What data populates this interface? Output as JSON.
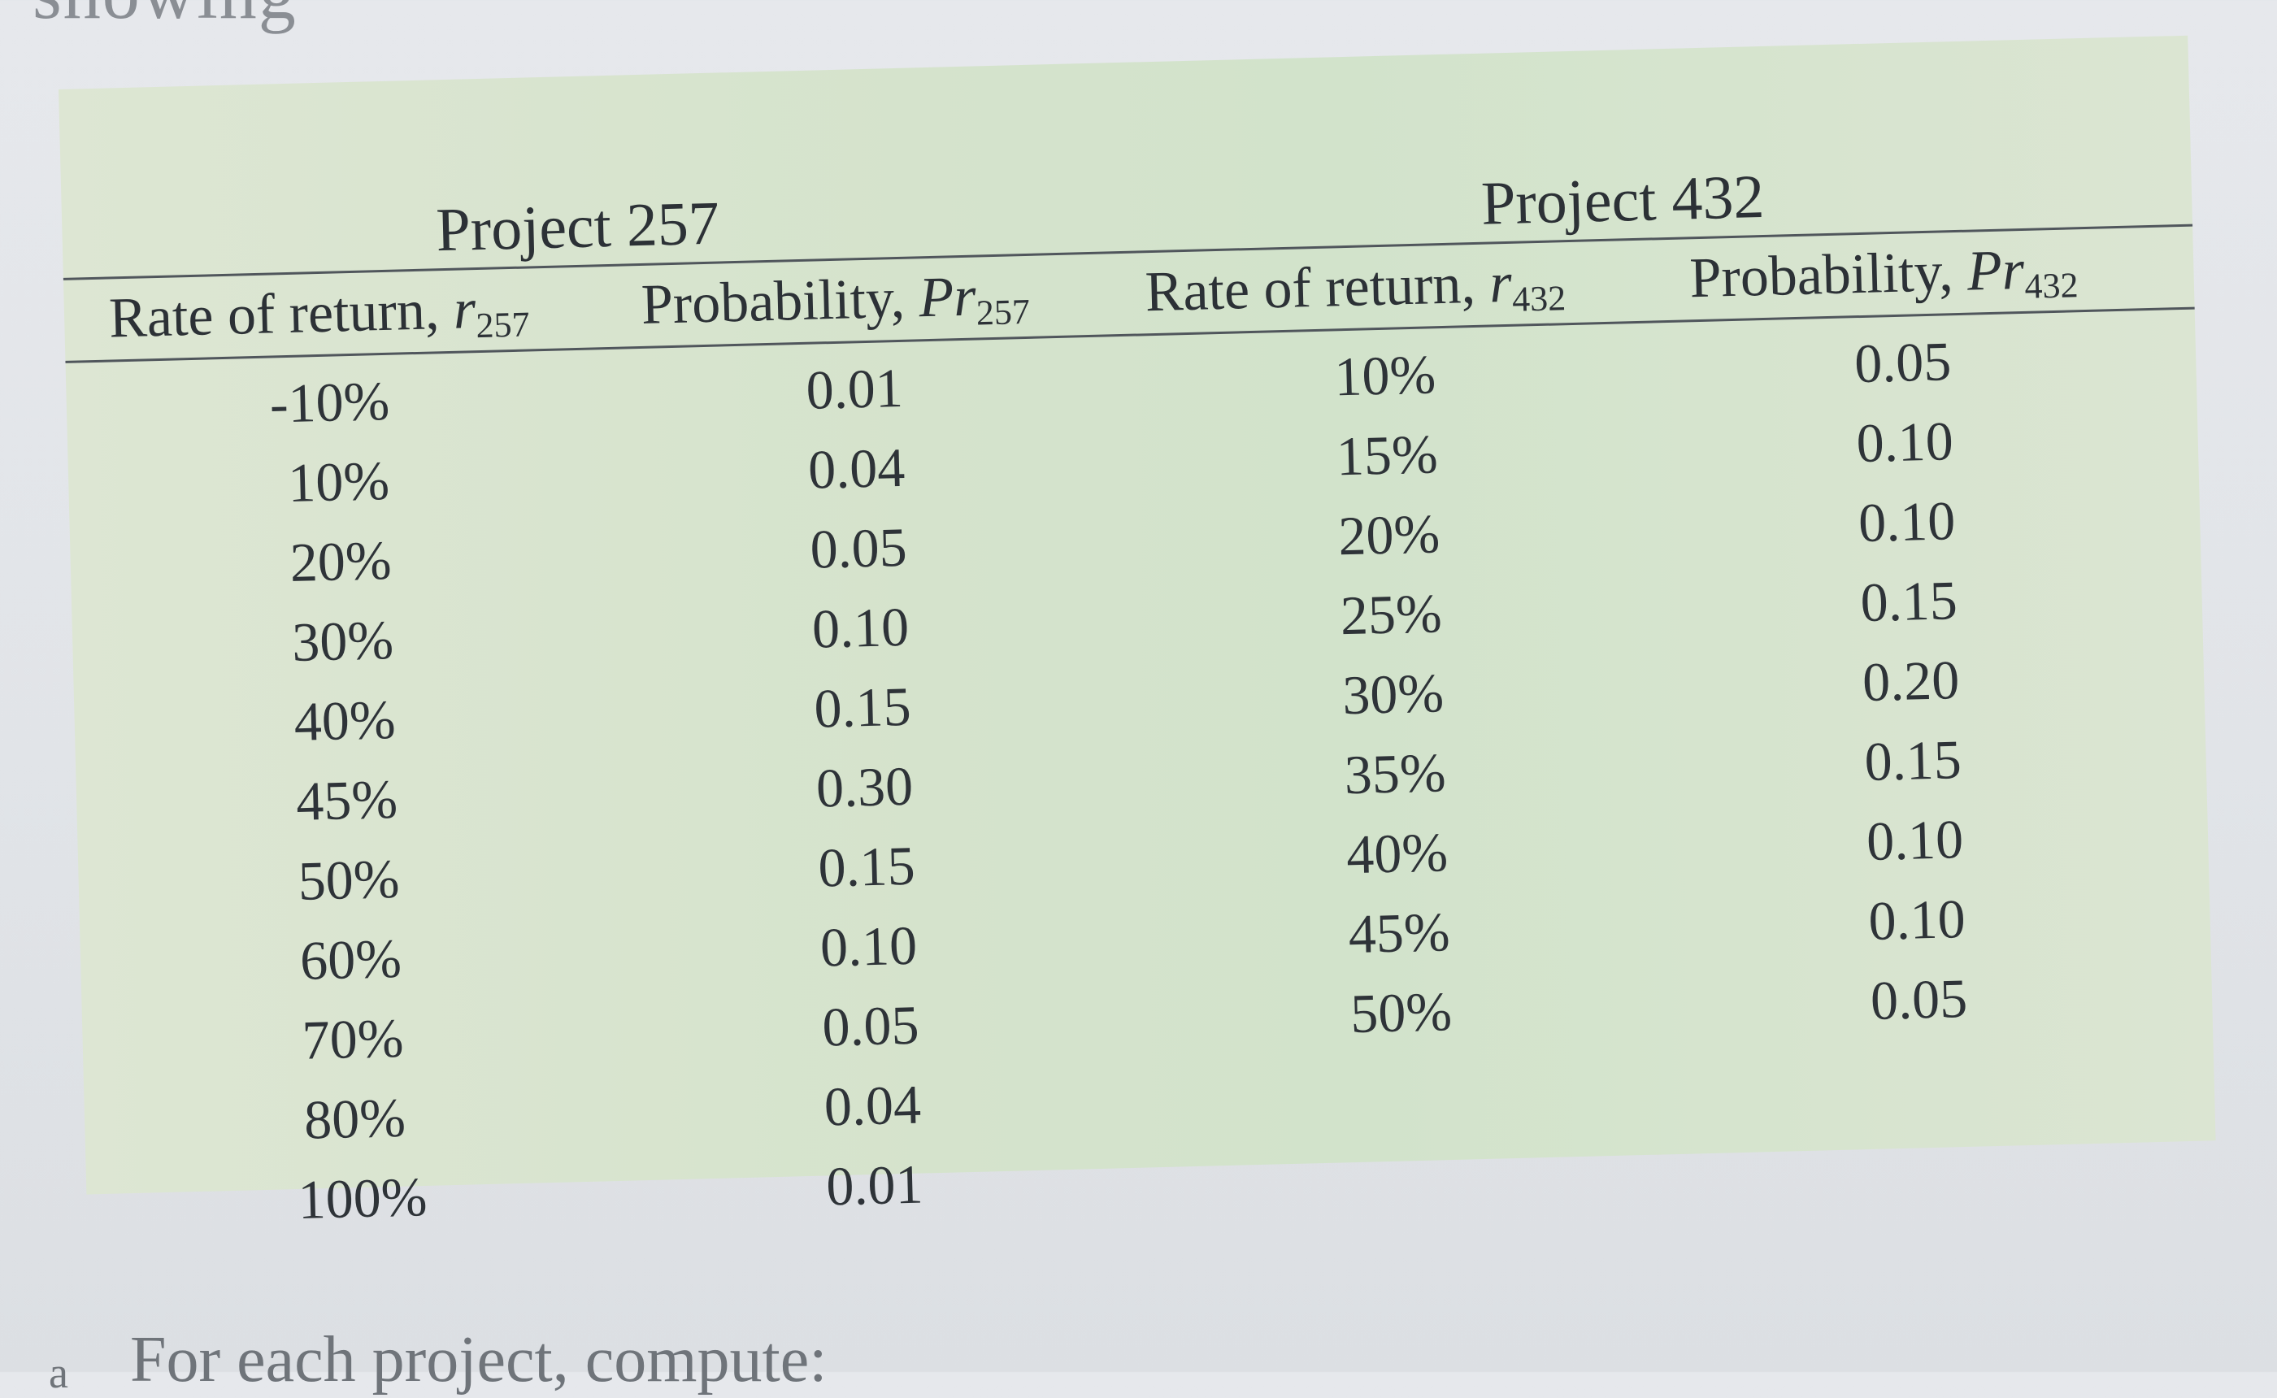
{
  "context": {
    "top_text": "showing",
    "item_letter": "a",
    "bottom_text": "For each project, compute:"
  },
  "table": {
    "project_a": {
      "title": "Project 257",
      "col_rate": {
        "label": "Rate of return,",
        "symbol": "r",
        "sub": "257"
      },
      "col_prob": {
        "label": "Probability,",
        "symbol": "Pr",
        "sub": "257"
      },
      "rows": [
        {
          "rate": "-10%",
          "prob": "0.01"
        },
        {
          "rate": "10%",
          "prob": "0.04"
        },
        {
          "rate": "20%",
          "prob": "0.05"
        },
        {
          "rate": "30%",
          "prob": "0.10"
        },
        {
          "rate": "40%",
          "prob": "0.15"
        },
        {
          "rate": "45%",
          "prob": "0.30"
        },
        {
          "rate": "50%",
          "prob": "0.15"
        },
        {
          "rate": "60%",
          "prob": "0.10"
        },
        {
          "rate": "70%",
          "prob": "0.05"
        },
        {
          "rate": "80%",
          "prob": "0.04"
        },
        {
          "rate": "100%",
          "prob": "0.01"
        }
      ]
    },
    "project_b": {
      "title": "Project 432",
      "col_rate": {
        "label": "Rate of return,",
        "symbol": "r",
        "sub": "432"
      },
      "col_prob": {
        "label": "Probability,",
        "symbol": "Pr",
        "sub": "432"
      },
      "rows": [
        {
          "rate": "10%",
          "prob": "0.05"
        },
        {
          "rate": "15%",
          "prob": "0.10"
        },
        {
          "rate": "20%",
          "prob": "0.10"
        },
        {
          "rate": "25%",
          "prob": "0.15"
        },
        {
          "rate": "30%",
          "prob": "0.20"
        },
        {
          "rate": "35%",
          "prob": "0.15"
        },
        {
          "rate": "40%",
          "prob": "0.10"
        },
        {
          "rate": "45%",
          "prob": "0.10"
        },
        {
          "rate": "50%",
          "prob": "0.05"
        }
      ]
    }
  },
  "colors": {
    "table_background": "#d5e3cc",
    "text": "#2e3338",
    "rule": "#50565c"
  }
}
